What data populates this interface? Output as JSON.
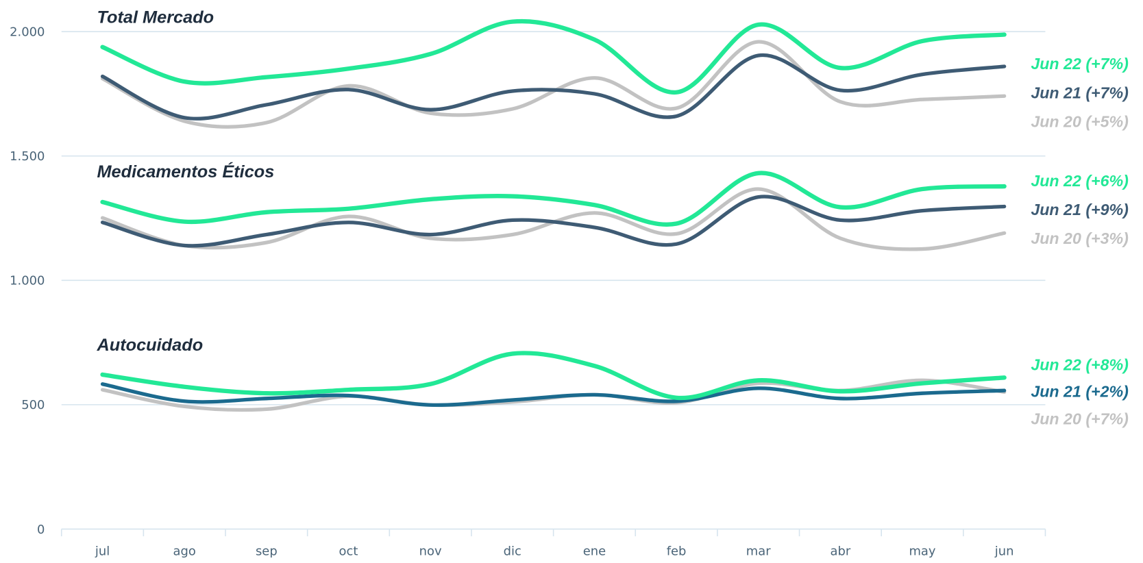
{
  "chart_data": {
    "type": "line",
    "categories": [
      "jul",
      "ago",
      "sep",
      "oct",
      "nov",
      "dic",
      "ene",
      "feb",
      "mar",
      "abr",
      "may",
      "jun"
    ],
    "ylim": [
      0,
      2100
    ],
    "yticks": [
      0,
      500,
      {
        "value": 1000,
        "label": "1.000"
      },
      {
        "value": 1500,
        "label": "1.500"
      },
      {
        "value": 2000,
        "label": "2.000"
      }
    ],
    "grid": true,
    "groups": [
      {
        "title": "Total Mercado",
        "series": [
          {
            "name": "Jun 22 (+7%)",
            "color": "#22e896",
            "values": [
              1938,
              1799,
              1817,
              1851,
              1910,
              2040,
              1968,
              1756,
              2028,
              1854,
              1962,
              1988
            ]
          },
          {
            "name": "Jun 21 (+7%)",
            "color": "#3e5b74",
            "values": [
              1820,
              1654,
              1706,
              1767,
              1686,
              1761,
              1750,
              1660,
              1904,
              1764,
              1828,
              1860
            ]
          },
          {
            "name": "Jun 20 (+5%)",
            "color": "#c2c2c2",
            "values": [
              1811,
              1640,
              1634,
              1782,
              1672,
              1689,
              1814,
              1692,
              1959,
              1718,
              1727,
              1741
            ]
          }
        ]
      },
      {
        "title": "Medicamentos Éticos",
        "series": [
          {
            "name": "Jun 22 (+6%)",
            "color": "#22e896",
            "values": [
              1315,
              1236,
              1274,
              1288,
              1326,
              1338,
              1303,
              1228,
              1431,
              1294,
              1367,
              1378
            ]
          },
          {
            "name": "Jun 21 (+9%)",
            "color": "#3e5b74",
            "values": [
              1233,
              1140,
              1184,
              1233,
              1184,
              1242,
              1213,
              1146,
              1335,
              1242,
              1280,
              1297
            ]
          },
          {
            "name": "Jun 20 (+3%)",
            "color": "#c2c2c2",
            "values": [
              1251,
              1140,
              1152,
              1257,
              1169,
              1184,
              1271,
              1187,
              1367,
              1169,
              1126,
              1190
            ]
          }
        ]
      },
      {
        "title": "Autocuidado",
        "series": [
          {
            "name": "Jun 22 (+8%)",
            "color": "#22e896",
            "values": [
              621,
              572,
              546,
              560,
              583,
              705,
              656,
              528,
              598,
              554,
              586,
              609
            ]
          },
          {
            "name": "Jun 21 (+2%)",
            "color": "#1b6a8e",
            "values": [
              583,
              514,
              525,
              537,
              499,
              519,
              540,
              514,
              566,
              525,
              546,
              557
            ]
          },
          {
            "name": "Jun 20 (+7%)",
            "color": "#c2c2c2",
            "values": [
              560,
              493,
              482,
              534,
              499,
              511,
              540,
              508,
              586,
              557,
              598,
              551
            ]
          }
        ]
      }
    ]
  }
}
